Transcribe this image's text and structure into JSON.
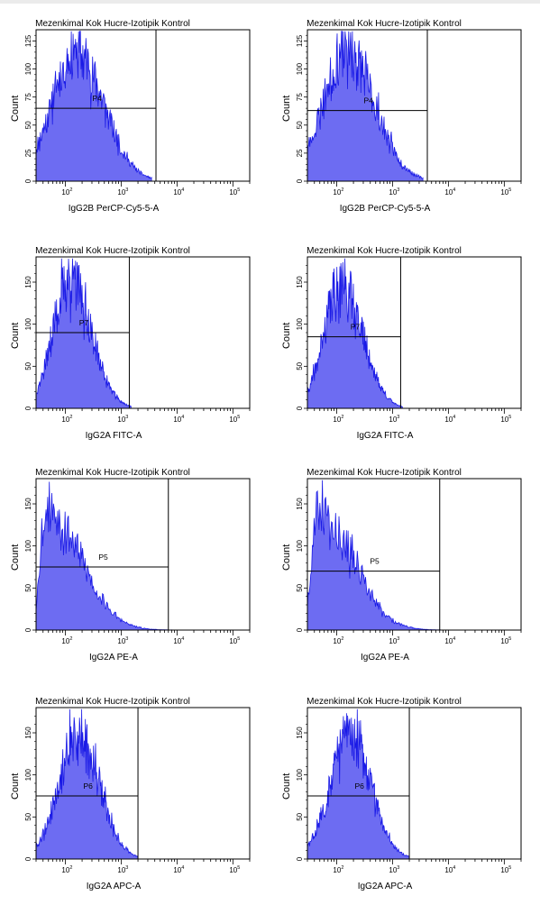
{
  "colors": {
    "histogram_fill": "#6d6cf2",
    "histogram_line": "#1a1ae6",
    "axis": "#000000"
  },
  "chart_data": [
    {
      "type": "area",
      "title": "Mezenkimal Kok Hucre-Izotipik Kontrol",
      "xlabel": "IgG2B PerCP-Cy5-5-A",
      "ylabel": "Count",
      "x_scale": "log",
      "xlim": [
        30,
        200000
      ],
      "ylim": [
        0,
        135
      ],
      "x_ticks": [
        100,
        1000,
        10000,
        100000
      ],
      "x_tick_labels": [
        "2",
        "3",
        "4",
        "5"
      ],
      "y_ticks": [
        0,
        25,
        50,
        75,
        100,
        125
      ],
      "y_tick_labels": [
        "0",
        "25",
        "50",
        "75",
        "100",
        "125"
      ],
      "histogram": {
        "peak_x": 150,
        "peak_y": 125,
        "sigma_left": 0.42,
        "sigma_right": 0.5,
        "min_x": 30,
        "max_x": 3500,
        "seed": 11
      },
      "gate": {
        "label": "P4",
        "x_start": 30,
        "x_end": 4200,
        "y": 65
      }
    },
    {
      "type": "area",
      "title": "Mezenkimal Kok Hucre-Izotipik Kontrol",
      "xlabel": "IgG2B PerCP-Cy5-5-A",
      "ylabel": "Count",
      "x_scale": "log",
      "xlim": [
        30,
        200000
      ],
      "ylim": [
        0,
        135
      ],
      "x_ticks": [
        100,
        1000,
        10000,
        100000
      ],
      "x_tick_labels": [
        "2",
        "3",
        "4",
        "5"
      ],
      "y_ticks": [
        0,
        25,
        50,
        75,
        100,
        125
      ],
      "y_tick_labels": [
        "0",
        "25",
        "50",
        "75",
        "100",
        "125"
      ],
      "histogram": {
        "peak_x": 150,
        "peak_y": 125,
        "sigma_left": 0.42,
        "sigma_right": 0.5,
        "min_x": 30,
        "max_x": 3500,
        "seed": 23
      },
      "gate": {
        "label": "P4",
        "x_start": 30,
        "x_end": 4200,
        "y": 63
      }
    },
    {
      "type": "area",
      "title": "Mezenkimal Kok Hucre-Izotipik Kontrol",
      "xlabel": "IgG2A FITC-A",
      "ylabel": "Count",
      "x_scale": "log",
      "xlim": [
        30,
        200000
      ],
      "ylim": [
        0,
        180
      ],
      "x_ticks": [
        100,
        1000,
        10000,
        100000
      ],
      "x_tick_labels": [
        "2",
        "3",
        "4",
        "5"
      ],
      "y_ticks": [
        0,
        50,
        100,
        150
      ],
      "y_tick_labels": [
        "0",
        "50",
        "100",
        "150"
      ],
      "histogram": {
        "peak_x": 120,
        "peak_y": 165,
        "sigma_left": 0.3,
        "sigma_right": 0.38,
        "min_x": 30,
        "max_x": 1500,
        "seed": 37
      },
      "gate": {
        "label": "P7",
        "x_start": 30,
        "x_end": 1400,
        "y": 90
      }
    },
    {
      "type": "area",
      "title": "Mezenkimal Kok Hucre-Izotipik Kontrol",
      "xlabel": "IgG2A FITC-A",
      "ylabel": "Count",
      "x_scale": "log",
      "xlim": [
        30,
        200000
      ],
      "ylim": [
        0,
        180
      ],
      "x_ticks": [
        100,
        1000,
        10000,
        100000
      ],
      "x_tick_labels": [
        "2",
        "3",
        "4",
        "5"
      ],
      "y_ticks": [
        0,
        50,
        100,
        150
      ],
      "y_tick_labels": [
        "0",
        "50",
        "100",
        "150"
      ],
      "histogram": {
        "peak_x": 120,
        "peak_y": 160,
        "sigma_left": 0.3,
        "sigma_right": 0.38,
        "min_x": 30,
        "max_x": 1500,
        "seed": 41
      },
      "gate": {
        "label": "P7",
        "x_start": 30,
        "x_end": 1400,
        "y": 85
      }
    },
    {
      "type": "area",
      "title": "Mezenkimal Kok Hucre-Izotipik Kontrol",
      "xlabel": "IgG2A PE-A",
      "ylabel": "Count",
      "x_scale": "log",
      "xlim": [
        30,
        200000
      ],
      "ylim": [
        0,
        180
      ],
      "x_ticks": [
        100,
        1000,
        10000,
        100000
      ],
      "x_tick_labels": [
        "2",
        "3",
        "4",
        "5"
      ],
      "y_ticks": [
        0,
        50,
        100,
        150
      ],
      "y_tick_labels": [
        "0",
        "50",
        "100",
        "150"
      ],
      "histogram": {
        "peak_x": 45,
        "peak_y": 160,
        "sigma_left": 0.1,
        "sigma_right": 0.6,
        "min_x": 30,
        "max_x": 20000,
        "seed": 53
      },
      "gate": {
        "label": "P5",
        "x_start": 30,
        "x_end": 7000,
        "y": 75
      }
    },
    {
      "type": "area",
      "title": "Mezenkimal Kok Hucre-Izotipik Kontrol",
      "xlabel": "IgG2A PE-A",
      "ylabel": "Count",
      "x_scale": "log",
      "xlim": [
        30,
        200000
      ],
      "ylim": [
        0,
        180
      ],
      "x_ticks": [
        100,
        1000,
        10000,
        100000
      ],
      "x_tick_labels": [
        "2",
        "3",
        "4",
        "5"
      ],
      "y_ticks": [
        0,
        50,
        100,
        150
      ],
      "y_tick_labels": [
        "0",
        "50",
        "100",
        "150"
      ],
      "histogram": {
        "peak_x": 45,
        "peak_y": 160,
        "sigma_left": 0.1,
        "sigma_right": 0.6,
        "min_x": 30,
        "max_x": 20000,
        "seed": 67
      },
      "gate": {
        "label": "P5",
        "x_start": 30,
        "x_end": 7000,
        "y": 70
      }
    },
    {
      "type": "area",
      "title": "Mezenkimal Kok Hucre-Izotipik Kontrol",
      "xlabel": "IgG2A APC-A",
      "ylabel": "Count",
      "x_scale": "log",
      "xlim": [
        30,
        200000
      ],
      "ylim": [
        0,
        180
      ],
      "x_ticks": [
        100,
        1000,
        10000,
        100000
      ],
      "x_tick_labels": [
        "2",
        "3",
        "4",
        "5"
      ],
      "y_ticks": [
        0,
        50,
        100,
        150
      ],
      "y_tick_labels": [
        "0",
        "50",
        "100",
        "150"
      ],
      "histogram": {
        "peak_x": 170,
        "peak_y": 160,
        "sigma_left": 0.35,
        "sigma_right": 0.38,
        "min_x": 30,
        "max_x": 2000,
        "seed": 79
      },
      "gate": {
        "label": "P6",
        "x_start": 30,
        "x_end": 2000,
        "y": 75
      }
    },
    {
      "type": "area",
      "title": "Mezenkimal Kok Hucre-Izotipik Kontrol",
      "xlabel": "IgG2A APC-A",
      "ylabel": "Count",
      "x_scale": "log",
      "xlim": [
        30,
        200000
      ],
      "ylim": [
        0,
        180
      ],
      "x_ticks": [
        100,
        1000,
        10000,
        100000
      ],
      "x_tick_labels": [
        "2",
        "3",
        "4",
        "5"
      ],
      "y_ticks": [
        0,
        50,
        100,
        150
      ],
      "y_tick_labels": [
        "0",
        "50",
        "100",
        "150"
      ],
      "histogram": {
        "peak_x": 170,
        "peak_y": 160,
        "sigma_left": 0.35,
        "sigma_right": 0.38,
        "min_x": 30,
        "max_x": 2000,
        "seed": 83
      },
      "gate": {
        "label": "P6",
        "x_start": 30,
        "x_end": 2000,
        "y": 75
      }
    }
  ]
}
